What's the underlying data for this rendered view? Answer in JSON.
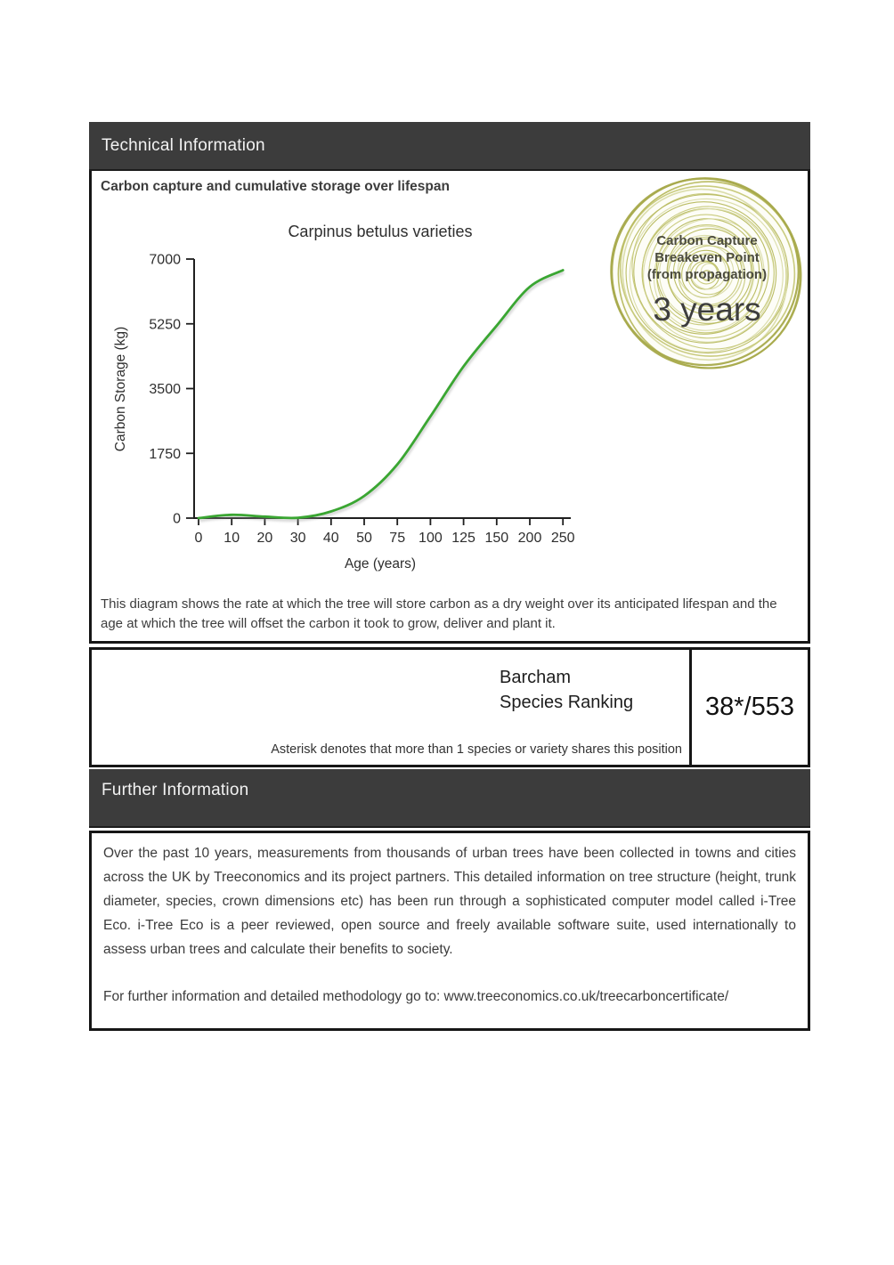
{
  "bands": {
    "technical": "Technical Information",
    "further": "Further Information"
  },
  "technical": {
    "section_title": "Carbon capture and cumulative storage over lifespan",
    "description": "This diagram shows the rate at which the tree will store carbon as a dry weight over its anticipated lifespan and the age at which the tree will offset the carbon it took to grow, deliver and plant it."
  },
  "badge": {
    "line1": "Carbon Capture",
    "line2": "Breakeven Point",
    "line3": "(from propagation)",
    "value": "3 years",
    "ring_color": "#b7b95e",
    "ring_color_light": "#d9dba6",
    "ring_color_mid": "#c6c878",
    "ring_color_outer": "#a8aa4c"
  },
  "chart_data": {
    "type": "line",
    "title": "Carpinus betulus varieties",
    "xlabel": "Age (years)",
    "ylabel": "Carbon Storage (kg)",
    "x_ticks": [
      0,
      10,
      20,
      30,
      40,
      50,
      75,
      100,
      125,
      150,
      200,
      250
    ],
    "y_ticks": [
      0,
      1750,
      3500,
      5250,
      7000
    ],
    "ylim": [
      0,
      7000
    ],
    "x_axis_spacing": "categorical (ticks evenly spaced)",
    "grid": false,
    "legend": false,
    "line_color": "#3aa632",
    "series": [
      {
        "name": "Carpinus betulus varieties",
        "x": [
          0,
          10,
          20,
          30,
          40,
          50,
          75,
          100,
          125,
          150,
          200,
          250
        ],
        "values": [
          0,
          90,
          40,
          10,
          180,
          600,
          1450,
          2750,
          4100,
          5200,
          6250,
          6700
        ]
      }
    ]
  },
  "ranking": {
    "label_line1": "Barcham",
    "label_line2": "Species Ranking",
    "value": "38*/553",
    "note": "Asterisk denotes that more than 1 species or variety shares this position"
  },
  "further": {
    "paragraph": "Over the past 10 years, measurements from thousands of urban trees have been collected in towns and cities across the UK by Treeconomics and its project partners. This detailed information on tree structure (height, trunk diameter, species, crown dimensions etc) has been run through a sophisticated computer model called i-Tree Eco. i-Tree Eco is a peer reviewed, open source and freely available software suite, used internationally to assess urban trees and calculate their benefits to society.",
    "link_line": "For further information and detailed methodology go to: www.treeconomics.co.uk/treecarboncertificate/"
  }
}
